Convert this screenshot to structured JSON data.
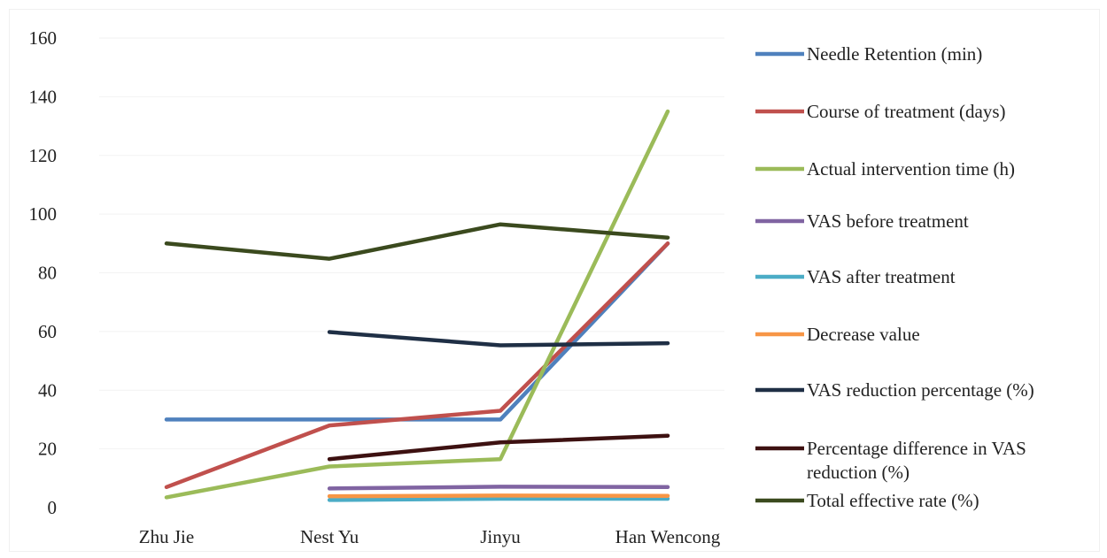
{
  "chart_data": {
    "type": "line",
    "title": "",
    "xlabel": "",
    "ylabel": "",
    "categories": [
      "Zhu Jie",
      "Nest Yu",
      "Jinyu",
      "Han Wencong"
    ],
    "ylim": [
      0,
      160
    ],
    "yticks": [
      0,
      20,
      40,
      60,
      80,
      100,
      120,
      140,
      160
    ],
    "grid": true,
    "legend_position": "right",
    "series": [
      {
        "name": "Needle Retention (min)",
        "color": "#4F81BD",
        "values": [
          30,
          30,
          30,
          90
        ]
      },
      {
        "name": "Course of treatment (days)",
        "color": "#C0504D",
        "values": [
          7,
          28,
          33,
          90
        ]
      },
      {
        "name": "Actual intervention time (h)",
        "color": "#9BBB59",
        "values": [
          3.5,
          14,
          16.5,
          135
        ]
      },
      {
        "name": "VAS before treatment",
        "color": "#8064A2",
        "values": [
          null,
          6.5,
          7.1,
          7.0
        ]
      },
      {
        "name": "VAS after treatment",
        "color": "#4BACC6",
        "values": [
          null,
          2.6,
          3.0,
          3.0
        ]
      },
      {
        "name": "Decrease value",
        "color": "#F79646",
        "values": [
          null,
          3.9,
          4.1,
          4.0
        ]
      },
      {
        "name": "VAS reduction percentage (%)",
        "color": "#1F2F45",
        "values": [
          null,
          59.8,
          55.3,
          56.0
        ]
      },
      {
        "name": "Percentage difference in VAS reduction (%)",
        "color": "#3D1111",
        "values": [
          null,
          16.5,
          22.2,
          24.5
        ]
      },
      {
        "name": "Total effective rate (%)",
        "color": "#3B4A1E",
        "values": [
          90,
          84.8,
          96.5,
          92
        ]
      }
    ]
  }
}
